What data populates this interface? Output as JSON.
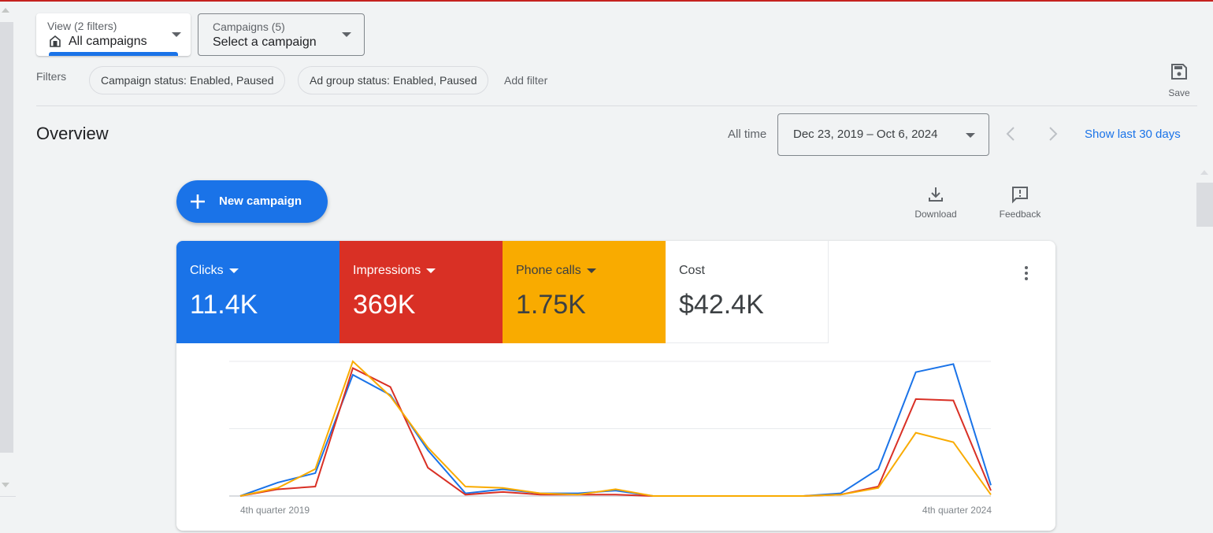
{
  "view": {
    "label": "View (2 filters)",
    "value": "All campaigns"
  },
  "campaigns": {
    "label": "Campaigns (5)",
    "value": "Select a campaign"
  },
  "filters": {
    "label": "Filters",
    "chips": [
      "Campaign status: Enabled, Paused",
      "Ad group status: Enabled, Paused"
    ],
    "add": "Add filter"
  },
  "save": "Save",
  "overview": {
    "title": "Overview",
    "range_label": "All time",
    "range": "Dec 23, 2019 – Oct 6, 2024",
    "show_last": "Show last 30 days"
  },
  "new_campaign": "New campaign",
  "download": "Download",
  "feedback": "Feedback",
  "metrics": [
    {
      "title": "Clicks",
      "value": "11.4K",
      "color": "#1a73e8"
    },
    {
      "title": "Impressions",
      "value": "369K",
      "color": "#d93025"
    },
    {
      "title": "Phone calls",
      "value": "1.75K",
      "color": "#f9ab00"
    },
    {
      "title": "Cost",
      "value": "$42.4K",
      "color": "#ffffff"
    }
  ],
  "chart_data": {
    "type": "line",
    "x_labels": [
      "4th quarter 2019",
      "4th quarter 2024"
    ],
    "x_count": 21,
    "ylim": [
      0,
      100
    ],
    "grid": true,
    "series": [
      {
        "name": "Clicks",
        "color": "#1a73e8",
        "values": [
          0,
          10,
          17,
          90,
          75,
          34,
          2,
          5,
          2,
          2,
          4,
          0,
          0,
          0,
          0,
          0,
          2,
          20,
          92,
          98,
          8
        ]
      },
      {
        "name": "Impressions",
        "color": "#d93025",
        "values": [
          0,
          5,
          7,
          95,
          81,
          21,
          1,
          3,
          1,
          1,
          1,
          0,
          0,
          0,
          0,
          0,
          1,
          7,
          72,
          71,
          4
        ]
      },
      {
        "name": "Phone calls",
        "color": "#f9ab00",
        "values": [
          0,
          6,
          20,
          100,
          74,
          36,
          7,
          6,
          2,
          1,
          5,
          0,
          0,
          0,
          0,
          0,
          1,
          6,
          47,
          40,
          1
        ]
      }
    ]
  }
}
